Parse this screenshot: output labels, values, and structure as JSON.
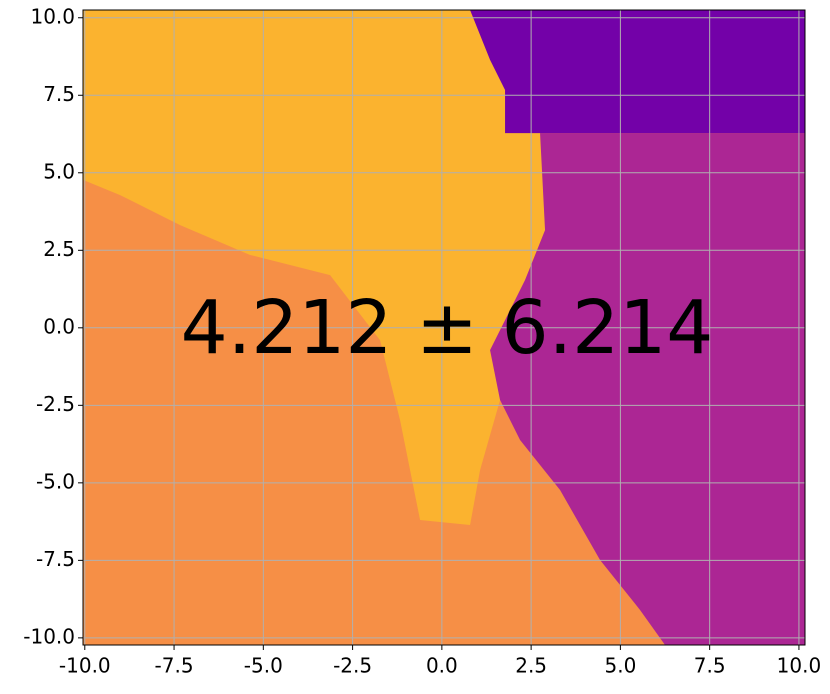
{
  "chart_data": {
    "type": "region",
    "annotation": "4.212 ± 6.214",
    "background": "#f68f46",
    "regions": [
      {
        "color": "#fbb32f",
        "x": [
          -10.05,
          0.79,
          1.35,
          1.77,
          1.77,
          2.75,
          2.89,
          2.33,
          1.35,
          1.63,
          1.07,
          0.79,
          -0.61,
          -1.17,
          -1.73,
          -3.13,
          -5.37,
          -7.33,
          -9.01,
          -10.05
        ],
        "y": [
          10.25,
          10.25,
          8.64,
          7.67,
          6.7,
          6.7,
          3.15,
          1.54,
          -0.72,
          -2.33,
          -4.59,
          -6.36,
          -6.2,
          -2.98,
          -0.4,
          1.7,
          2.35,
          3.31,
          4.28,
          4.77
        ]
      },
      {
        "color": "#ac2694",
        "x": [
          2.75,
          10.17,
          10.17,
          6.25,
          5.55,
          4.43,
          3.31,
          2.19,
          1.63,
          1.35,
          2.33,
          2.89
        ],
        "y": [
          6.28,
          6.28,
          -10.23,
          -10.23,
          -9.1,
          -7.49,
          -5.23,
          -3.62,
          -2.33,
          -0.72,
          1.54,
          3.15
        ]
      },
      {
        "color": "#7301a8",
        "x": [
          0.79,
          10.17,
          10.17,
          1.77,
          1.77,
          1.35
        ],
        "y": [
          10.25,
          10.25,
          6.28,
          6.28,
          7.67,
          8.64
        ]
      }
    ],
    "xlim": [
      -10.05,
      10.17
    ],
    "ylim": [
      -10.23,
      10.25
    ],
    "xticks": [
      {
        "value": -10,
        "label": "-10.0"
      },
      {
        "value": -7.5,
        "label": "-7.5"
      },
      {
        "value": -5,
        "label": "-5.0"
      },
      {
        "value": -2.5,
        "label": "-2.5"
      },
      {
        "value": 0,
        "label": "0.0"
      },
      {
        "value": 2.5,
        "label": "2.5"
      },
      {
        "value": 5,
        "label": "5.0"
      },
      {
        "value": 7.5,
        "label": "7.5"
      },
      {
        "value": 10,
        "label": "10.0"
      }
    ],
    "yticks": [
      {
        "value": -10,
        "label": "-10.0"
      },
      {
        "value": -7.5,
        "label": "-7.5"
      },
      {
        "value": -5,
        "label": "-5.0"
      },
      {
        "value": -2.5,
        "label": "-2.5"
      },
      {
        "value": 0,
        "label": "0.0"
      },
      {
        "value": 2.5,
        "label": "2.5"
      },
      {
        "value": 5,
        "label": "5.0"
      },
      {
        "value": 7.5,
        "label": "7.5"
      },
      {
        "value": 10,
        "label": "10.0"
      }
    ],
    "grid": true
  }
}
